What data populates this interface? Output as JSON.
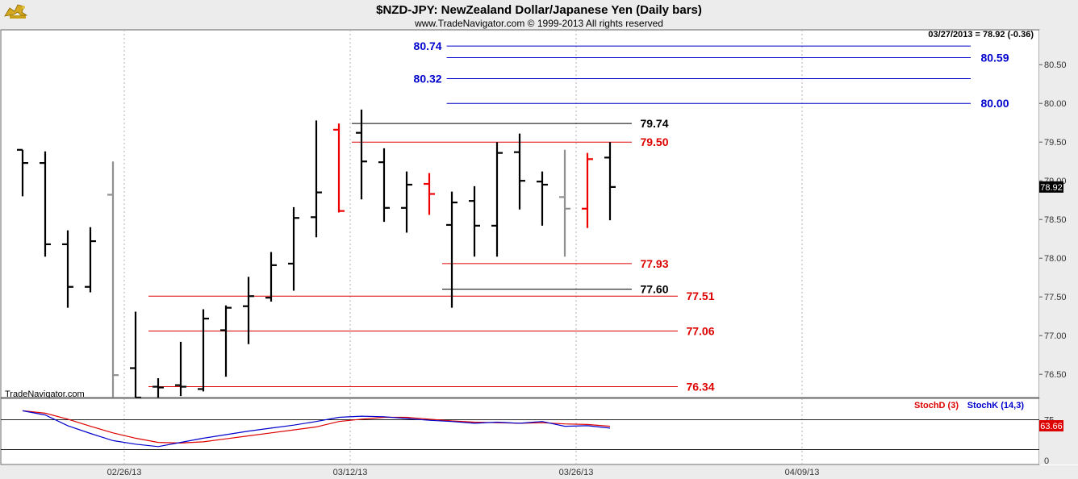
{
  "logo": {
    "name": "bull-logo-icon"
  },
  "header": {
    "title": "$NZD-JPY:  NewZealand Dollar/Japanese Yen  (Daily bars)",
    "copyright": "www.TradeNavigator.com © 1999-2013 All rights reserved"
  },
  "watermark": "TradeNavigator.com",
  "last_value": {
    "label": "03/27/2013 = 78.92 (-0.36)",
    "badge": "78.92"
  },
  "stoch": {
    "legend_d": "StochD (3)",
    "legend_k": "StochK (14,3)",
    "tick_75": "75",
    "tick_0": "0",
    "badge": "63.66",
    "colors": {
      "d": "#dd0000",
      "k": "#0000cc"
    }
  },
  "chart_data": {
    "type": "ohlc",
    "instrument": "$NZD-JPY",
    "ylim": [
      76.2,
      80.95
    ],
    "yticks": [
      76.5,
      77.0,
      77.5,
      78.0,
      78.5,
      79.0,
      79.5,
      80.0,
      80.5
    ],
    "ytick_labels": [
      "76.50",
      "77.00",
      "77.50",
      "78.00",
      "78.50",
      "79.00",
      "79.50",
      "80.00",
      "80.50"
    ],
    "xticks": [
      {
        "label": "02/26/13",
        "index": 5
      },
      {
        "label": "03/12/13",
        "index": 15
      },
      {
        "label": "03/26/13",
        "index": 25
      },
      {
        "label": "04/09/13",
        "index": 35
      }
    ],
    "bars": [
      {
        "o": 79.4,
        "h": 79.4,
        "l": 78.8,
        "c": 79.23,
        "color": "black"
      },
      {
        "o": 79.23,
        "h": 79.38,
        "l": 78.02,
        "c": 78.18,
        "color": "black"
      },
      {
        "o": 78.18,
        "h": 78.36,
        "l": 77.36,
        "c": 77.63,
        "color": "black"
      },
      {
        "o": 77.63,
        "h": 78.4,
        "l": 77.56,
        "c": 78.22,
        "color": "black"
      },
      {
        "o": 78.82,
        "h": 79.25,
        "l": 76.2,
        "c": 76.49,
        "color": "gray"
      },
      {
        "o": 76.58,
        "h": 77.31,
        "l": 76.2,
        "c": 76.2,
        "color": "black"
      },
      {
        "o": 76.34,
        "h": 76.45,
        "l": 76.2,
        "c": 76.33,
        "color": "black"
      },
      {
        "o": 76.36,
        "h": 76.92,
        "l": 76.22,
        "c": 76.34,
        "color": "black"
      },
      {
        "o": 76.31,
        "h": 77.34,
        "l": 76.28,
        "c": 77.22,
        "color": "black"
      },
      {
        "o": 77.07,
        "h": 77.39,
        "l": 76.47,
        "c": 77.36,
        "color": "black"
      },
      {
        "o": 77.38,
        "h": 77.76,
        "l": 76.89,
        "c": 77.51,
        "color": "black"
      },
      {
        "o": 77.49,
        "h": 78.08,
        "l": 77.44,
        "c": 77.91,
        "color": "black"
      },
      {
        "o": 77.93,
        "h": 78.66,
        "l": 77.58,
        "c": 78.52,
        "color": "black"
      },
      {
        "o": 78.53,
        "h": 79.78,
        "l": 78.27,
        "c": 78.85,
        "color": "black"
      },
      {
        "o": 79.66,
        "h": 79.74,
        "l": 78.59,
        "c": 78.61,
        "color": "red"
      },
      {
        "o": 79.62,
        "h": 79.92,
        "l": 78.76,
        "c": 79.25,
        "color": "black"
      },
      {
        "o": 79.24,
        "h": 79.42,
        "l": 78.47,
        "c": 78.65,
        "color": "black"
      },
      {
        "o": 78.65,
        "h": 79.12,
        "l": 78.33,
        "c": 78.95,
        "color": "black"
      },
      {
        "o": 78.96,
        "h": 79.1,
        "l": 78.56,
        "c": 78.83,
        "color": "red"
      },
      {
        "o": 78.43,
        "h": 78.86,
        "l": 77.36,
        "c": 78.72,
        "color": "black"
      },
      {
        "o": 78.74,
        "h": 78.93,
        "l": 78.02,
        "c": 78.42,
        "color": "black"
      },
      {
        "o": 78.42,
        "h": 79.5,
        "l": 78.02,
        "c": 79.36,
        "color": "black"
      },
      {
        "o": 79.37,
        "h": 79.61,
        "l": 78.63,
        "c": 79.0,
        "color": "black"
      },
      {
        "o": 78.99,
        "h": 79.12,
        "l": 78.42,
        "c": 78.95,
        "color": "black"
      },
      {
        "o": 78.79,
        "h": 79.4,
        "l": 78.02,
        "c": 78.64,
        "color": "gray"
      },
      {
        "o": 78.64,
        "h": 79.36,
        "l": 78.39,
        "c": 79.28,
        "color": "red"
      },
      {
        "o": 79.3,
        "h": 79.5,
        "l": 78.49,
        "c": 78.92,
        "color": "black"
      }
    ],
    "levels": [
      {
        "value": 80.74,
        "label": "80.74",
        "color": "#0000cc",
        "label_side": "left",
        "from_index": 19.2
      },
      {
        "value": 80.59,
        "label": "80.59",
        "color": "#0000cc",
        "label_side": "right",
        "from_index": 19.2
      },
      {
        "value": 80.32,
        "label": "80.32",
        "color": "#0000cc",
        "label_side": "left",
        "from_index": 19.2
      },
      {
        "value": 80.0,
        "label": "80.00",
        "color": "#0000cc",
        "label_side": "right",
        "from_index": 19.2
      },
      {
        "value": 79.74,
        "label": "79.74",
        "color": "#000000",
        "label_side": "right",
        "from_index": 15
      },
      {
        "value": 79.5,
        "label": "79.50",
        "color": "#dd0000",
        "label_side": "right",
        "from_index": 15
      },
      {
        "value": 77.93,
        "label": "77.93",
        "color": "#dd0000",
        "label_side": "right",
        "from_index": 19
      },
      {
        "value": 77.6,
        "label": "77.60",
        "color": "#000000",
        "label_side": "right",
        "from_index": 19
      },
      {
        "value": 77.51,
        "label": "77.51",
        "color": "#dd0000",
        "label_side": "right",
        "from_index": 6
      },
      {
        "value": 77.06,
        "label": "77.06",
        "color": "#dd0000",
        "label_side": "right",
        "from_index": 6
      },
      {
        "value": 76.34,
        "label": "76.34",
        "color": "#dd0000",
        "label_side": "right",
        "from_index": 6
      }
    ],
    "stochastics": {
      "ylim": [
        0,
        100
      ],
      "ref_levels": [
        75,
        25
      ],
      "stoch_k": [
        90,
        83,
        65,
        52,
        40,
        34,
        30,
        37,
        44,
        50,
        56,
        61,
        66,
        72,
        79,
        81,
        80,
        77,
        74,
        72,
        69,
        71,
        69,
        72,
        64,
        65,
        61
      ],
      "stoch_d": [
        90,
        86,
        76,
        64,
        53,
        44,
        37,
        36,
        38,
        43,
        48,
        53,
        58,
        63,
        72,
        76,
        79,
        79,
        76,
        73,
        71,
        70,
        69,
        70,
        68,
        67,
        64
      ]
    }
  }
}
